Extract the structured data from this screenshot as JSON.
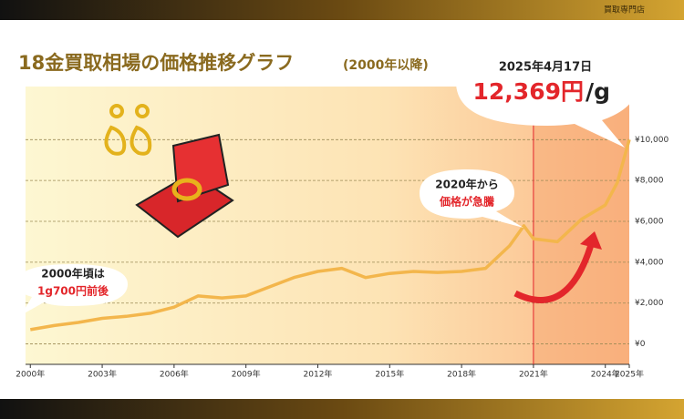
{
  "header": {
    "shop": "買取専門店"
  },
  "chart_data": {
    "type": "line",
    "title": "18金買取相場の価格推移グラフ",
    "subtitle": "(2000年以降)",
    "x": [
      2000,
      2001,
      2002,
      2003,
      2004,
      2005,
      2006,
      2007,
      2008,
      2009,
      2010,
      2011,
      2012,
      2013,
      2014,
      2015,
      2016,
      2017,
      2018,
      2019,
      2020,
      2020.6,
      2021,
      2022,
      2023,
      2024,
      2024.5,
      2025
    ],
    "values": [
      700,
      900,
      1050,
      1250,
      1350,
      1500,
      1800,
      2350,
      2250,
      2350,
      2800,
      3250,
      3550,
      3700,
      3250,
      3450,
      3550,
      3500,
      3550,
      3700,
      4800,
      5780,
      5150,
      5000,
      6100,
      6800,
      7900,
      10000
    ],
    "color": "#f3b64c",
    "highlight_x": 2021,
    "xlim": [
      1999.8,
      2025
    ],
    "xticks": [
      {
        "value": 2000,
        "label": "2000年"
      },
      {
        "value": 2003,
        "label": "2003年"
      },
      {
        "value": 2006,
        "label": "2006年"
      },
      {
        "value": 2009,
        "label": "2009年"
      },
      {
        "value": 2012,
        "label": "2012年"
      },
      {
        "value": 2015,
        "label": "2015年"
      },
      {
        "value": 2018,
        "label": "2018年"
      },
      {
        "value": 2021,
        "label": "2021年"
      },
      {
        "value": 2024,
        "label": "2024年"
      },
      {
        "value": 2025,
        "label": "2025年"
      }
    ],
    "ylim": [
      -1000,
      12600
    ],
    "yticks": [
      {
        "value": 0,
        "label": "¥0"
      },
      {
        "value": 2000,
        "label": "¥2,000"
      },
      {
        "value": 4000,
        "label": "¥4,000"
      },
      {
        "value": 6000,
        "label": "¥6,000"
      },
      {
        "value": 8000,
        "label": "¥8,000"
      },
      {
        "value": 10000,
        "label": "¥10,000"
      }
    ],
    "grid": true,
    "annotations": {
      "start": [
        "2000年頃は",
        "1g700円前後"
      ],
      "surge": [
        "2020年から",
        "価格が急騰"
      ],
      "latest": {
        "date": "2025年4月17日",
        "price": "12,369円",
        "unit": "/g"
      }
    }
  }
}
